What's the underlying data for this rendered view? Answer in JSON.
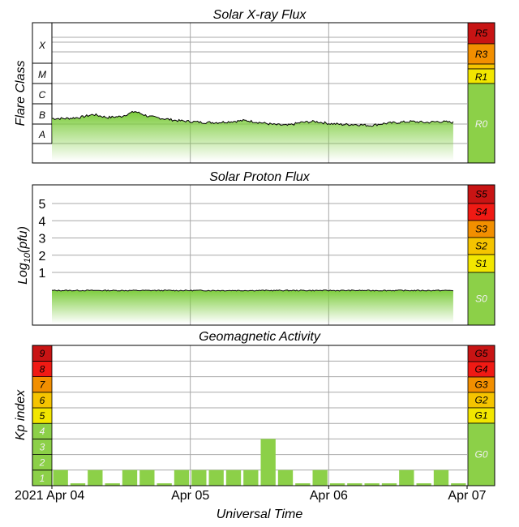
{
  "colors": {
    "G0": "#8cd048",
    "G1": "#f2e600",
    "G2": "#f5c400",
    "G3": "#f28f00",
    "G4": "#f01a14",
    "G5": "#c81414",
    "grid": "#a8a8a8",
    "data_fill": "#7ccc3c"
  },
  "chart_data": [
    {
      "type": "area",
      "title": "Solar X-ray Flux",
      "ylabel": "Flare Class",
      "class_labels": [
        "A",
        "B",
        "C",
        "M",
        "X"
      ],
      "scale_labels": [
        "R5",
        "R3",
        "R1",
        "R0"
      ],
      "x_range": [
        "2021-04-04",
        "2021-04-07"
      ],
      "series": [
        {
          "x": [
            0,
            0.1,
            0.2,
            0.3,
            0.4,
            0.5,
            0.6,
            0.7,
            0.8,
            0.9,
            1.0,
            1.1,
            1.2,
            1.3,
            1.4,
            1.5,
            1.6,
            1.7,
            1.8,
            1.9,
            2.0,
            2.1,
            2.2,
            2.3,
            2.4,
            2.5,
            2.6,
            2.7,
            2.8,
            2.9
          ],
          "y": [
            1.25,
            1.25,
            1.3,
            1.45,
            1.3,
            1.35,
            1.6,
            1.35,
            1.25,
            1.15,
            1.1,
            1.05,
            1.05,
            1.1,
            1.15,
            1.05,
            0.95,
            0.9,
            1.05,
            1.1,
            1.0,
            0.95,
            0.95,
            0.9,
            1.0,
            1.05,
            1.1,
            1.05,
            1.1,
            1.05
          ]
        }
      ]
    },
    {
      "type": "area",
      "title": "Solar Proton Flux",
      "ylabel": "Log10(pfu)",
      "yticks": [
        1,
        2,
        3,
        4,
        5
      ],
      "ylim": [
        -1.2,
        5.9
      ],
      "scale_labels": [
        "S5",
        "S4",
        "S3",
        "S2",
        "S1",
        "S0"
      ],
      "x_range": [
        "2021-04-04",
        "2021-04-07"
      ],
      "series": [
        {
          "x": [
            0,
            0.5,
            1.0,
            1.5,
            2.0,
            2.5,
            2.9
          ],
          "y": [
            -0.05,
            -0.05,
            -0.05,
            -0.05,
            -0.05,
            -0.05,
            -0.05
          ]
        }
      ]
    },
    {
      "type": "bar",
      "title": "Geomagnetic Activity",
      "ylabel": "Kp index",
      "xlabel": "Universal Time",
      "ylim": [
        0,
        9
      ],
      "yticks": [
        1,
        2,
        3,
        4,
        5,
        6,
        7,
        8,
        9
      ],
      "scale_labels": [
        "G5",
        "G4",
        "G3",
        "G2",
        "G1",
        "G0"
      ],
      "xticks": [
        "2021 Apr 04",
        "Apr 05",
        "Apr 06",
        "Apr 07"
      ],
      "x_range": [
        "2021-04-04",
        "2021-04-07"
      ],
      "values": [
        1,
        0.15,
        1,
        0.15,
        1,
        1,
        0.15,
        1,
        1,
        1,
        1,
        1,
        3,
        1,
        0.15,
        1,
        0.15,
        0.15,
        0.15,
        0.15,
        1,
        0.15,
        1,
        0.15
      ]
    }
  ]
}
